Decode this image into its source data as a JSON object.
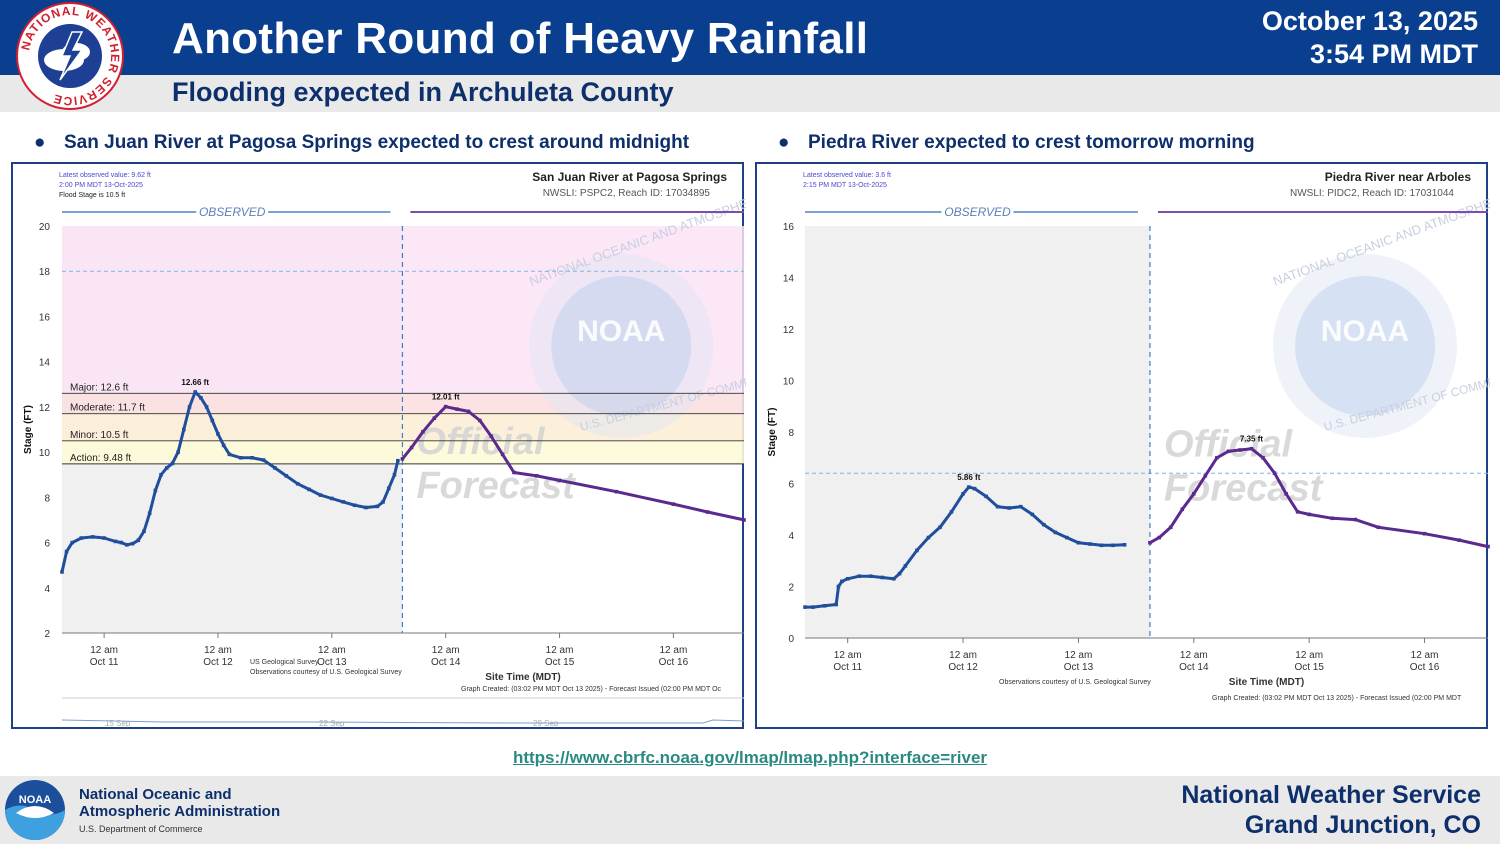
{
  "header": {
    "title": "Another Round of Heavy Rainfall",
    "subtitle": "Flooding expected in Archuleta County",
    "date": "October 13, 2025",
    "time": "3:54 PM MDT",
    "seal_text": "NATIONAL WEATHER SERVICE",
    "colors": {
      "banner": "#0a3f8f",
      "subbar": "#e9e9ea",
      "text_dark": "#0d2f6b"
    }
  },
  "bullets": [
    {
      "text": "San Juan River at Pagosa Springs expected to crest around midnight"
    },
    {
      "text": "Piedra River expected to crest tomorrow morning"
    }
  ],
  "link": {
    "text": "https://www.cbrfc.noaa.gov/lmap/lmap.php?interface=river"
  },
  "footer": {
    "agency_line1": "National Oceanic and",
    "agency_line2": "Atmospheric Administration",
    "department": "U.S. Department of Commerce",
    "office_line1": "National Weather Service",
    "office_line2": "Grand Junction, CO",
    "logo_text": "NOAA"
  },
  "chart_data": [
    {
      "type": "line",
      "title": "San Juan River at Pagosa Springs",
      "subtitle": "NWSLI: PSPC2, Reach ID: 17034895",
      "info": [
        "Latest observed value: 9.62 ft",
        "2:00 PM MDT 13-Oct-2025",
        "Flood Stage is 10.5 ft"
      ],
      "ylabel": "Stage (FT)",
      "xlabel": "Site Time (MDT)",
      "ylim": [
        2,
        20
      ],
      "yticks": [
        2,
        4,
        6,
        8,
        10,
        12,
        14,
        16,
        18,
        20
      ],
      "xlim": [
        -0.37,
        5.62
      ],
      "x_units": "days since 12 am Oct 11",
      "xticks": [
        {
          "x": 0,
          "l1": "12 am",
          "l2": "Oct 11"
        },
        {
          "x": 1,
          "l1": "12 am",
          "l2": "Oct 12"
        },
        {
          "x": 2,
          "l1": "12 am",
          "l2": "Oct 13"
        },
        {
          "x": 3,
          "l1": "12 am",
          "l2": "Oct 14"
        },
        {
          "x": 4,
          "l1": "12 am",
          "l2": "Oct 15"
        },
        {
          "x": 5,
          "l1": "12 am",
          "l2": "Oct 16"
        }
      ],
      "observed_label": "OBSERVED",
      "divider_x": 2.62,
      "reference_line": 18,
      "flood_categories": [
        {
          "name": "Action",
          "label": "Action: 9.48 ft",
          "stage": 9.48,
          "color": "#fdfbd8"
        },
        {
          "name": "Minor",
          "label": "Minor: 10.5 ft",
          "stage": 10.5,
          "color": "#fdeed6"
        },
        {
          "name": "Moderate",
          "label": "Moderate: 11.7 ft",
          "stage": 11.7,
          "color": "#fce0e0"
        },
        {
          "name": "Major",
          "label": "Major: 12.6 ft",
          "stage": 12.6,
          "color": "#fbe3f6"
        }
      ],
      "series": [
        {
          "name": "Observed",
          "color": "#1f4e9c",
          "points": [
            [
              -0.37,
              4.7
            ],
            [
              -0.33,
              5.6
            ],
            [
              -0.28,
              6.0
            ],
            [
              -0.2,
              6.2
            ],
            [
              -0.1,
              6.25
            ],
            [
              0.0,
              6.2
            ],
            [
              0.1,
              6.05
            ],
            [
              0.15,
              6.0
            ],
            [
              0.2,
              5.9
            ],
            [
              0.25,
              5.95
            ],
            [
              0.3,
              6.1
            ],
            [
              0.35,
              6.5
            ],
            [
              0.4,
              7.3
            ],
            [
              0.45,
              8.3
            ],
            [
              0.5,
              9.0
            ],
            [
              0.55,
              9.3
            ],
            [
              0.6,
              9.5
            ],
            [
              0.65,
              10.0
            ],
            [
              0.7,
              11.0
            ],
            [
              0.75,
              12.0
            ],
            [
              0.8,
              12.66
            ],
            [
              0.85,
              12.4
            ],
            [
              0.9,
              12.0
            ],
            [
              0.95,
              11.4
            ],
            [
              1.0,
              10.8
            ],
            [
              1.05,
              10.3
            ],
            [
              1.1,
              9.9
            ],
            [
              1.2,
              9.75
            ],
            [
              1.3,
              9.75
            ],
            [
              1.4,
              9.65
            ],
            [
              1.5,
              9.3
            ],
            [
              1.6,
              8.95
            ],
            [
              1.7,
              8.6
            ],
            [
              1.8,
              8.35
            ],
            [
              1.9,
              8.1
            ],
            [
              2.0,
              7.95
            ],
            [
              2.1,
              7.8
            ],
            [
              2.2,
              7.65
            ],
            [
              2.3,
              7.55
            ],
            [
              2.4,
              7.6
            ],
            [
              2.45,
              7.8
            ],
            [
              2.5,
              8.4
            ],
            [
              2.55,
              9.0
            ],
            [
              2.58,
              9.62
            ]
          ]
        },
        {
          "name": "Forecast",
          "color": "#5a2a8f",
          "points": [
            [
              2.62,
              9.7
            ],
            [
              2.7,
              10.2
            ],
            [
              2.8,
              10.9
            ],
            [
              2.9,
              11.5
            ],
            [
              3.0,
              12.01
            ],
            [
              3.1,
              11.9
            ],
            [
              3.2,
              11.8
            ],
            [
              3.3,
              11.4
            ],
            [
              3.4,
              10.7
            ],
            [
              3.5,
              9.9
            ],
            [
              3.6,
              9.1
            ],
            [
              3.8,
              8.95
            ],
            [
              4.0,
              8.75
            ],
            [
              4.5,
              8.25
            ],
            [
              5.0,
              7.7
            ],
            [
              5.3,
              7.35
            ],
            [
              5.62,
              7.0
            ]
          ]
        }
      ],
      "peak_labels": [
        {
          "x": 0.8,
          "y": 12.66,
          "text": "12.66 ft"
        },
        {
          "x": 3.0,
          "y": 12.01,
          "text": "12.01 ft"
        }
      ],
      "credits": [
        "US Geological Survey",
        "Observations courtesy of U.S. Geological Survey"
      ],
      "graph_created": "Graph Created: (03:02 PM MDT Oct 13 2025) - Forecast Issued (02:00 PM MDT Oc",
      "nav_labels": [
        "15 Sep",
        "22 Sep",
        "29 Sep"
      ],
      "watermark": {
        "official": "Official",
        "forecast": "Forecast",
        "logo": "NOAA",
        "ring": "NATIONAL OCEANIC AND ATMOSPHERIC ADMINISTRATION",
        "dept": "U.S. DEPARTMENT OF COMMERCE"
      }
    },
    {
      "type": "line",
      "title": "Piedra River near Arboles",
      "subtitle": "NWSLI: PIDC2, Reach ID: 17031044",
      "info": [
        "Latest observed value: 3.6 ft",
        "2:15 PM MDT 13-Oct-2025"
      ],
      "ylabel": "Stage (FT)",
      "xlabel": "Site Time (MDT)",
      "ylim": [
        0,
        16
      ],
      "yticks": [
        0,
        2,
        4,
        6,
        8,
        10,
        12,
        14,
        16
      ],
      "xlim": [
        -0.37,
        5.55
      ],
      "x_units": "days since 12 am Oct 11",
      "xticks": [
        {
          "x": 0,
          "l1": "12 am",
          "l2": "Oct 11"
        },
        {
          "x": 1,
          "l1": "12 am",
          "l2": "Oct 12"
        },
        {
          "x": 2,
          "l1": "12 am",
          "l2": "Oct 13"
        },
        {
          "x": 3,
          "l1": "12 am",
          "l2": "Oct 14"
        },
        {
          "x": 4,
          "l1": "12 am",
          "l2": "Oct 15"
        },
        {
          "x": 5,
          "l1": "12 am",
          "l2": "Oct 16"
        }
      ],
      "observed_label": "OBSERVED",
      "divider_x": 2.62,
      "reference_line": 6.4,
      "flood_categories": [],
      "series": [
        {
          "name": "Observed",
          "color": "#1f4e9c",
          "points": [
            [
              -0.37,
              1.2
            ],
            [
              -0.3,
              1.2
            ],
            [
              -0.2,
              1.25
            ],
            [
              -0.1,
              1.3
            ],
            [
              -0.08,
              2.0
            ],
            [
              -0.05,
              2.2
            ],
            [
              0.0,
              2.3
            ],
            [
              0.1,
              2.4
            ],
            [
              0.2,
              2.4
            ],
            [
              0.3,
              2.35
            ],
            [
              0.4,
              2.3
            ],
            [
              0.45,
              2.5
            ],
            [
              0.5,
              2.8
            ],
            [
              0.6,
              3.4
            ],
            [
              0.7,
              3.9
            ],
            [
              0.8,
              4.3
            ],
            [
              0.9,
              4.9
            ],
            [
              1.0,
              5.6
            ],
            [
              1.05,
              5.86
            ],
            [
              1.1,
              5.8
            ],
            [
              1.2,
              5.5
            ],
            [
              1.3,
              5.1
            ],
            [
              1.4,
              5.05
            ],
            [
              1.5,
              5.1
            ],
            [
              1.6,
              4.8
            ],
            [
              1.7,
              4.4
            ],
            [
              1.8,
              4.1
            ],
            [
              1.9,
              3.9
            ],
            [
              2.0,
              3.7
            ],
            [
              2.1,
              3.65
            ],
            [
              2.2,
              3.6
            ],
            [
              2.3,
              3.6
            ],
            [
              2.4,
              3.62
            ]
          ]
        },
        {
          "name": "Forecast",
          "color": "#5a2a8f",
          "points": [
            [
              2.62,
              3.7
            ],
            [
              2.7,
              3.9
            ],
            [
              2.8,
              4.3
            ],
            [
              2.9,
              5.0
            ],
            [
              3.0,
              5.6
            ],
            [
              3.1,
              6.3
            ],
            [
              3.2,
              7.0
            ],
            [
              3.3,
              7.25
            ],
            [
              3.4,
              7.3
            ],
            [
              3.5,
              7.35
            ],
            [
              3.6,
              7.0
            ],
            [
              3.7,
              6.4
            ],
            [
              3.8,
              5.6
            ],
            [
              3.9,
              4.9
            ],
            [
              4.0,
              4.8
            ],
            [
              4.2,
              4.65
            ],
            [
              4.4,
              4.6
            ],
            [
              4.6,
              4.3
            ],
            [
              5.0,
              4.05
            ],
            [
              5.3,
              3.8
            ],
            [
              5.55,
              3.55
            ]
          ]
        }
      ],
      "peak_labels": [
        {
          "x": 1.05,
          "y": 5.86,
          "text": "5.86 ft"
        },
        {
          "x": 3.5,
          "y": 7.35,
          "text": "7.35 ft"
        }
      ],
      "credits": [
        "Observations courtesy of U.S. Geological Survey"
      ],
      "graph_created": "Graph Created: (03:02 PM MDT Oct 13 2025) - Forecast Issued (02:00 PM MDT",
      "nav_labels": [],
      "watermark": {
        "official": "Official",
        "forecast": "Forecast",
        "logo": "NOAA",
        "ring": "NATIONAL OCEANIC AND ATMOSPHERIC ADMINISTRATION",
        "dept": "U.S. DEPARTMENT OF COMMERCE"
      }
    }
  ]
}
